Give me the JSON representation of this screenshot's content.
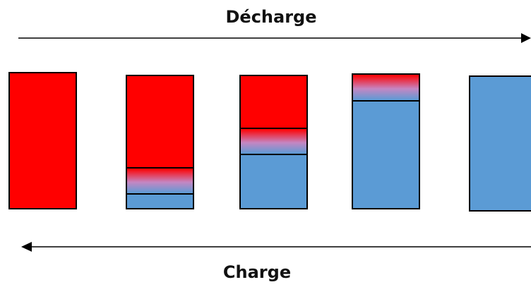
{
  "colors": {
    "charged": "#ff0000",
    "discharged": "#5b9bd5"
  },
  "top_label": "Décharge",
  "bottom_label": "Charge",
  "cells": [
    {
      "red_fraction": 1.0,
      "transition_fraction": 0.0
    },
    {
      "red_fraction": 0.7,
      "transition_fraction": 0.2
    },
    {
      "red_fraction": 0.4,
      "transition_fraction": 0.2
    },
    {
      "red_fraction": 0.0,
      "transition_fraction": 0.2
    },
    {
      "red_fraction": 0.0,
      "transition_fraction": 0.0
    }
  ]
}
